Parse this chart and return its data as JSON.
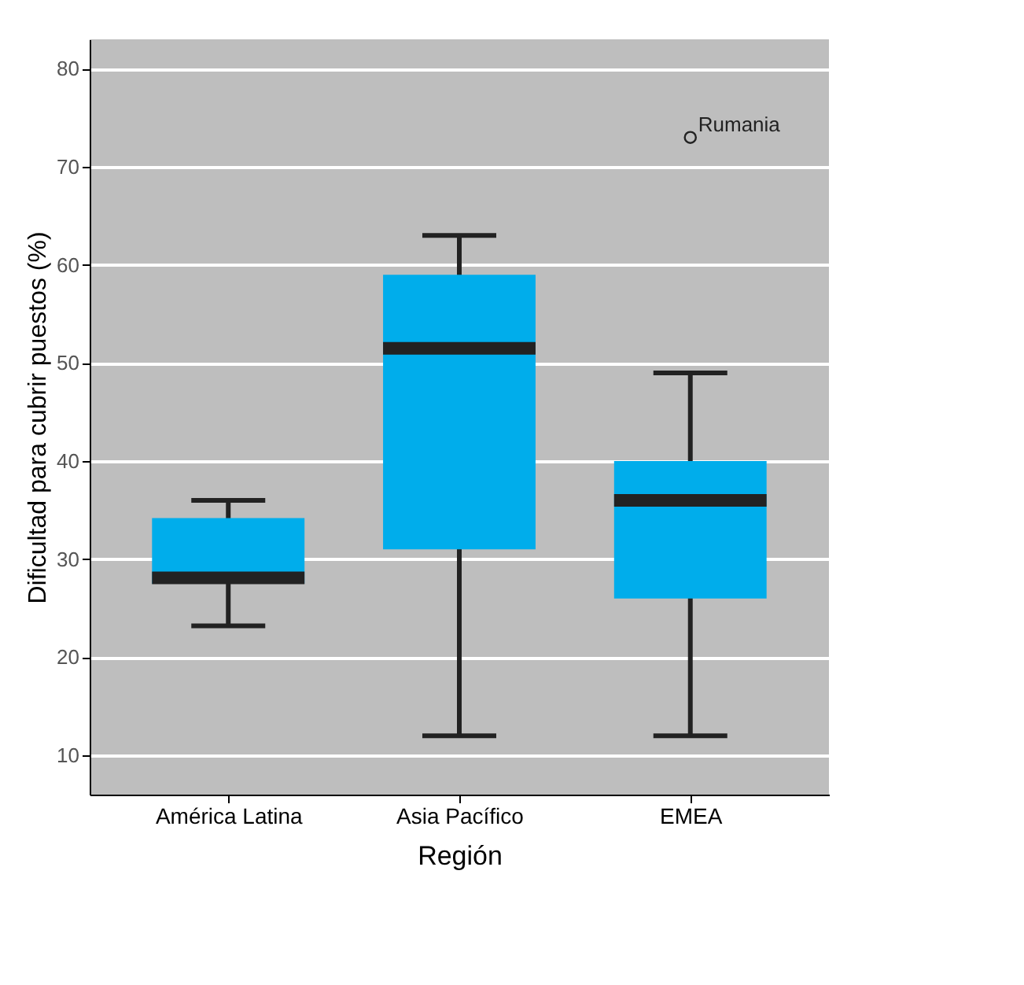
{
  "chart_data": {
    "type": "box",
    "xlabel": "Región",
    "ylabel": "Dificultad para cubrir puestos (%)",
    "categories": [
      "América Latina",
      "Asia Pacífico",
      "EMEA"
    ],
    "boxes": [
      {
        "low": 23.2,
        "q1": 27.5,
        "median": 28.1,
        "q3": 34.2,
        "high": 36
      },
      {
        "low": 12,
        "q1": 31,
        "median": 51.5,
        "q3": 59,
        "high": 63
      },
      {
        "low": 12,
        "q1": 26,
        "median": 36,
        "q3": 40,
        "high": 49,
        "outliers": [
          73
        ]
      }
    ],
    "color": "#00adeb",
    "ylim": [
      6,
      83
    ],
    "yticks": [
      10,
      20,
      30,
      40,
      50,
      60,
      70,
      80
    ],
    "grid": "y",
    "annotations": [
      "Rumania"
    ]
  }
}
